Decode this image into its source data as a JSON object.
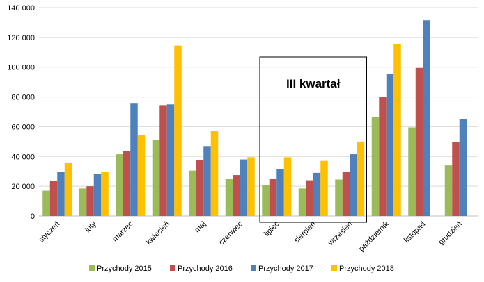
{
  "chart_data": {
    "type": "bar",
    "categories": [
      "styczeń",
      "luty",
      "marzec",
      "kwiecień",
      "maj",
      "czerwiec",
      "lipiec",
      "sierpień",
      "wrzesień",
      "październik",
      "listopad",
      "grudzień"
    ],
    "series": [
      {
        "name": "Przychody 2015",
        "color": "#9BBB59",
        "values": [
          17000,
          18500,
          41500,
          51000,
          30500,
          25000,
          21000,
          18500,
          24500,
          66500,
          59500,
          34000
        ]
      },
      {
        "name": "Przychody 2016",
        "color": "#C0504D",
        "values": [
          23500,
          20000,
          43500,
          74500,
          37500,
          27500,
          25000,
          24000,
          29500,
          80000,
          99500,
          49500
        ]
      },
      {
        "name": "Przychody 2017",
        "color": "#4F81BD",
        "values": [
          29500,
          28000,
          75500,
          75000,
          47000,
          38000,
          31500,
          29000,
          41500,
          95500,
          131500,
          65000
        ]
      },
      {
        "name": "Przychody 2018",
        "color": "#FFC000",
        "values": [
          35500,
          29500,
          54500,
          114500,
          57000,
          39500,
          39500,
          37000,
          50000,
          115500,
          null,
          null
        ]
      }
    ],
    "ylim": [
      0,
      140000
    ],
    "yticks": [
      "0",
      "20 000",
      "40 000",
      "60 000",
      "80 000",
      "100 000",
      "120 000",
      "140 000"
    ],
    "grid": true,
    "legend_position": "bottom",
    "annotation": {
      "text": "III kwartał",
      "from_category": "lipiec",
      "to_category": "wrzesień"
    }
  }
}
